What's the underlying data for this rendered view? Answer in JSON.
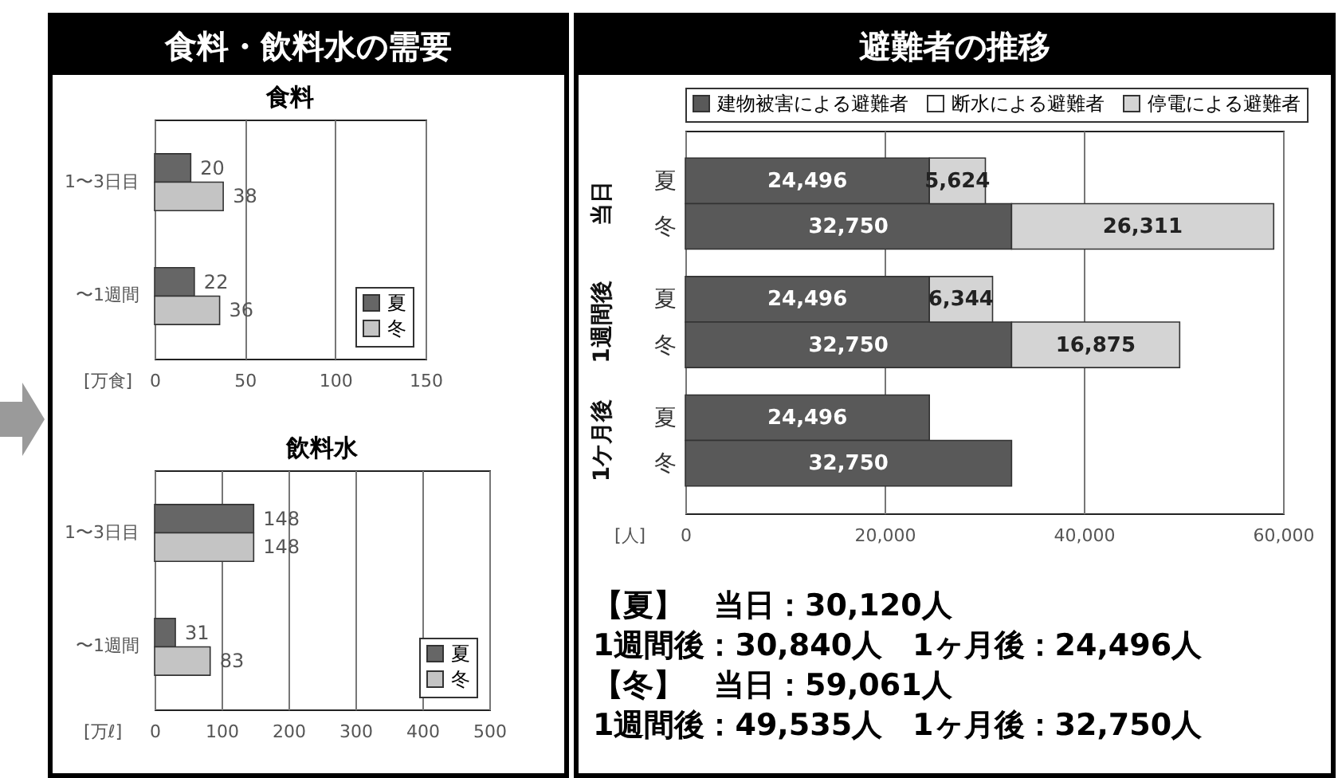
{
  "chart_data": [
    {
      "type": "bar",
      "title": "食料・飲料水の需要",
      "subtitle": "食料",
      "orientation": "horizontal",
      "categories": [
        "1〜3日目",
        "〜1週間"
      ],
      "series": [
        {
          "name": "夏",
          "color": "#666666",
          "values": [
            20,
            22
          ]
        },
        {
          "name": "冬",
          "color": "#c4c4c4",
          "values": [
            38,
            36
          ]
        }
      ],
      "xlim": [
        0,
        150
      ],
      "xticks": [
        0,
        50,
        100,
        150
      ],
      "xlabel": "[万食]",
      "grid": "x",
      "legend": "bottom right",
      "data_labels": true
    },
    {
      "type": "bar",
      "title": "飲料水",
      "orientation": "horizontal",
      "categories": [
        "1〜3日目",
        "〜1週間"
      ],
      "series": [
        {
          "name": "夏",
          "color": "#666666",
          "values": [
            148,
            31
          ]
        },
        {
          "name": "冬",
          "color": "#c4c4c4",
          "values": [
            148,
            83
          ]
        }
      ],
      "xlim": [
        0,
        500
      ],
      "xticks": [
        0,
        100,
        200,
        300,
        400,
        500
      ],
      "xlabel": "[万ℓ]",
      "grid": "x",
      "legend": "bottom right",
      "data_labels": true
    },
    {
      "type": "bar",
      "title": "避難者の推移",
      "orientation": "horizontal",
      "stacked": true,
      "categories": [
        "夏",
        "冬",
        "夏",
        "冬",
        "夏",
        "冬"
      ],
      "series": [
        {
          "name": "建物被害による避難者",
          "color": "#595959",
          "values": [
            24496,
            32750,
            24496,
            32750,
            24496,
            32750
          ],
          "value_labels": [
            "24,496",
            "32,750",
            "24,496",
            "32,750",
            "24,496",
            "32,750"
          ]
        },
        {
          "name": "断水による避難者",
          "color": "#ffffff",
          "values": [
            null,
            null,
            null,
            null,
            null,
            null
          ]
        },
        {
          "name": "停電による避難者",
          "color": "#d4d4d4",
          "values": [
            5624,
            26311,
            6344,
            16875,
            null,
            null
          ],
          "value_labels": [
            "5,624",
            "26,311",
            "6,344",
            "16,875",
            null,
            null
          ]
        }
      ],
      "xlim": [
        0,
        60000
      ],
      "xticks": [
        0,
        {
          "value": 20000,
          "label": "20,000"
        },
        {
          "value": 40000,
          "label": "40,000"
        },
        {
          "value": 60000,
          "label": "60,000"
        }
      ],
      "xlabel": "[人]",
      "grid": "x",
      "legend": "top",
      "annotations": [
        "当日",
        "1週間後",
        "1ケ月後"
      ]
    },
    {
      "type": "other",
      "annotations": [
        "【夏】　当日：30,120人",
        "1週間後：30,840人　1ヶ月後：24,496人",
        "【冬】　当日：59,061人",
        "1週間後：49,535人　1ヶ月後：32,750人"
      ]
    }
  ]
}
